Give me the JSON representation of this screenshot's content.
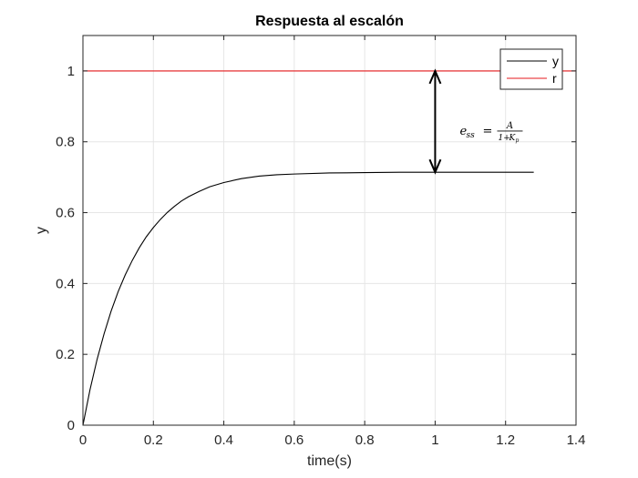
{
  "chart_data": {
    "type": "line",
    "title": "Respuesta al escalón",
    "xlabel": "time(s)",
    "ylabel": "y",
    "xlim": [
      0,
      1.4
    ],
    "ylim": [
      0,
      1.1
    ],
    "grid": true,
    "legend_position": "top-right",
    "x_ticks": [
      "0",
      "0.2",
      "0.4",
      "0.6",
      "0.8",
      "1",
      "1.2",
      "1.4"
    ],
    "y_ticks": [
      "0",
      "0.2",
      "0.4",
      "0.6",
      "0.8",
      "1"
    ],
    "series": [
      {
        "name": "y",
        "color": "#000000",
        "x": [
          0,
          0.02,
          0.04,
          0.06,
          0.08,
          0.1,
          0.12,
          0.14,
          0.16,
          0.18,
          0.2,
          0.22,
          0.24,
          0.26,
          0.28,
          0.3,
          0.33,
          0.36,
          0.4,
          0.45,
          0.5,
          0.55,
          0.6,
          0.7,
          0.8,
          0.9,
          1.0,
          1.1,
          1.2,
          1.28
        ],
        "y": [
          0,
          0.1,
          0.185,
          0.258,
          0.322,
          0.377,
          0.424,
          0.465,
          0.501,
          0.532,
          0.558,
          0.581,
          0.601,
          0.618,
          0.633,
          0.645,
          0.66,
          0.673,
          0.685,
          0.696,
          0.703,
          0.707,
          0.709,
          0.712,
          0.713,
          0.714,
          0.714,
          0.714,
          0.714,
          0.714
        ]
      },
      {
        "name": "r",
        "color": "#e41a1c",
        "x": [
          0,
          1.4
        ],
        "y": [
          1,
          1
        ]
      }
    ],
    "annotations": [
      {
        "type": "double-arrow",
        "x": 1.0,
        "y_from": 1.0,
        "y_to": 0.714
      },
      {
        "type": "text",
        "x": 1.07,
        "y": 0.82,
        "lhs": "e",
        "lhs_sub": "ss",
        "equals": "=",
        "numerator": "A",
        "denominator_prefix": "1+",
        "denominator_var": "K",
        "denominator_sub": "p"
      }
    ]
  }
}
